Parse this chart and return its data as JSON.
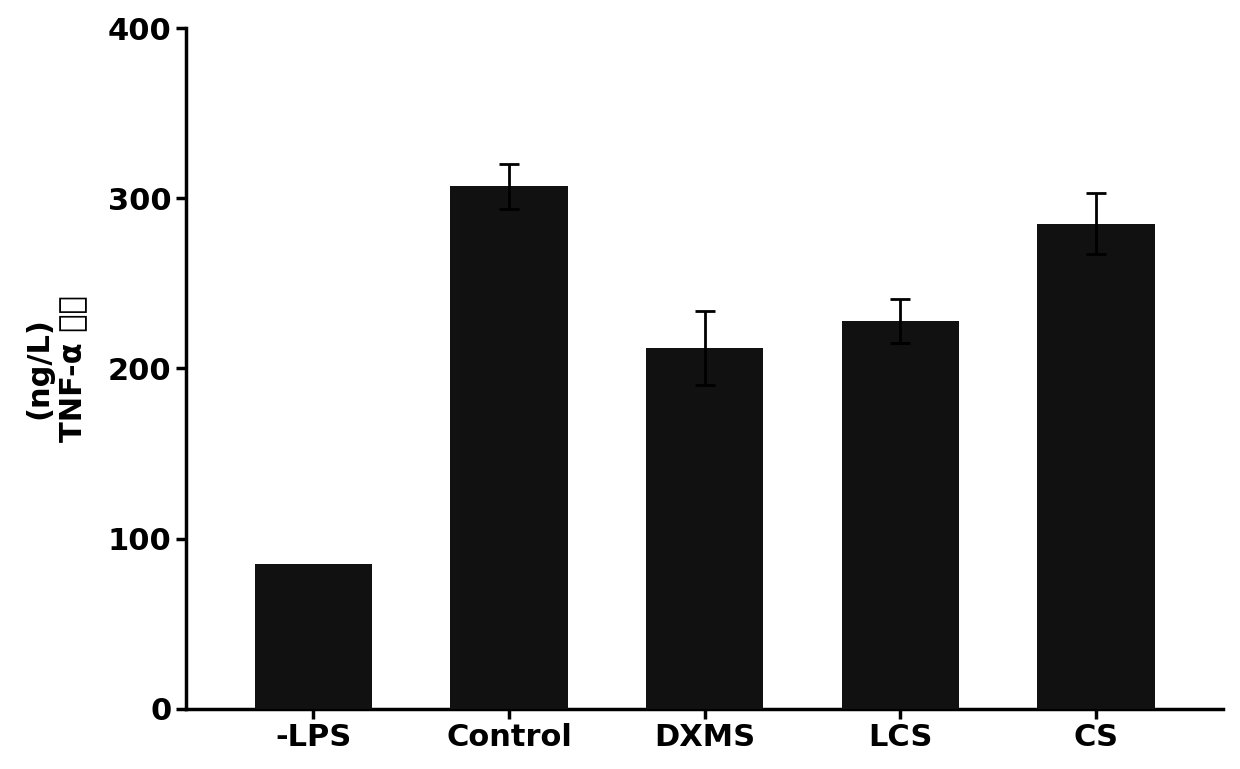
{
  "categories": [
    "-LPS",
    "Control",
    "DXMS",
    "LCS",
    "CS"
  ],
  "values": [
    85,
    307,
    212,
    228,
    285
  ],
  "errors": [
    0,
    13,
    22,
    13,
    18
  ],
  "bar_color": "#111111",
  "background_color": "#ffffff",
  "ylabel_line1": "TNF-α 水平",
  "ylabel_line2": "(ng/L)",
  "ylim": [
    0,
    400
  ],
  "yticks": [
    0,
    100,
    200,
    300,
    400
  ],
  "bar_width": 0.6,
  "error_capsize": 7,
  "error_linewidth": 2.0,
  "axis_linewidth": 2.5,
  "tick_fontsize": 22,
  "ylabel_fontsize": 22
}
